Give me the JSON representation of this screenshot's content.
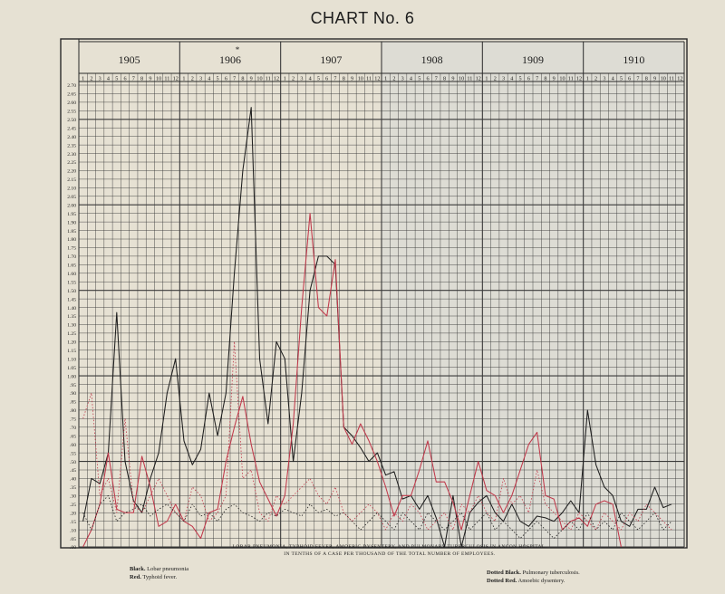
{
  "title": "CHART No. 6",
  "caption_line1": "LOBAR PNEUMONIA, TYPHOID FEVER, AMOEBIC DYSENTERY, AND PULMONARY TUBERCULOSIS IN ANCON HOSPITAL.",
  "caption_line2": "IN TENTHS OF A CASE PER THOUSAND OF THE TOTAL NUMBER OF EMPLOYEES.",
  "legend_left": [
    {
      "key": "Black.",
      "label": "Lobar pneumonia",
      "color": "#1e1e1e"
    },
    {
      "key": "Red.",
      "label": "Typhoid fever.",
      "color": "#c0384a"
    }
  ],
  "legend_right": [
    {
      "key": "Dotted Black.",
      "label": "Pulmonary tuberculosis.",
      "color": "#1e1e1e"
    },
    {
      "key": "Dotted Red.",
      "label": "Amoebic dysentery.",
      "color": "#c0384a"
    }
  ],
  "chart_data": {
    "type": "line",
    "years": [
      "1905",
      "1906",
      "1907",
      "1908",
      "1909",
      "1910"
    ],
    "year_marks": [
      "",
      "*",
      "",
      "",
      "",
      ""
    ],
    "months": [
      "1",
      "2",
      "3",
      "4",
      "5",
      "6",
      "7",
      "8",
      "9",
      "10",
      "11",
      "12"
    ],
    "y_ticks": [
      "2.70",
      "2.65",
      "2.60",
      "2.55",
      "2.50",
      "2.45",
      "2.40",
      "2.35",
      "2.30",
      "2.25",
      "2.20",
      "2.15",
      "2.10",
      "2.05",
      "2.00",
      "1.95",
      "1.90",
      "1.85",
      "1.80",
      "1.75",
      "1.70",
      "1.65",
      "1.60",
      "1.55",
      "1.50",
      "1.45",
      "1.40",
      "1.35",
      "1.30",
      "1.25",
      "1.20",
      "1.15",
      "1.10",
      "1.05",
      "1.00",
      ".95",
      ".90",
      ".85",
      ".80",
      ".75",
      ".70",
      ".65",
      ".60",
      ".55",
      ".50",
      ".45",
      ".40",
      ".35",
      ".30",
      ".25",
      ".20",
      ".15",
      ".10",
      ".05",
      ".00"
    ],
    "ylim": [
      0,
      2.7
    ],
    "grid": true,
    "series": [
      {
        "name": "Lobar pneumonia",
        "color": "#1e1e1e",
        "dash": "none",
        "values": [
          0.15,
          0.4,
          0.37,
          0.55,
          1.37,
          0.5,
          0.27,
          0.2,
          0.4,
          0.55,
          0.9,
          1.1,
          0.62,
          0.48,
          0.57,
          0.9,
          0.65,
          0.9,
          1.6,
          2.2,
          2.57,
          1.1,
          0.72,
          1.2,
          1.1,
          0.5,
          0.9,
          1.5,
          1.7,
          1.7,
          1.65,
          0.7,
          0.65,
          0.58,
          0.5,
          0.55,
          0.42,
          0.44,
          0.28,
          0.3,
          0.22,
          0.3,
          0.17,
          0.0,
          0.3,
          0.0,
          0.2,
          0.26,
          0.3,
          0.2,
          0.15,
          0.25,
          0.15,
          0.12,
          0.18,
          0.17,
          0.15,
          0.2,
          0.27,
          0.2,
          0.8,
          0.48,
          0.35,
          0.3,
          0.15,
          0.12,
          0.22,
          0.22,
          0.35,
          0.23,
          0.25
        ]
      },
      {
        "name": "Typhoid fever",
        "color": "#c0384a",
        "dash": "none",
        "values": [
          0.0,
          0.1,
          0.25,
          0.55,
          0.22,
          0.2,
          0.2,
          0.53,
          0.35,
          0.12,
          0.15,
          0.25,
          0.15,
          0.12,
          0.05,
          0.2,
          0.22,
          0.5,
          0.7,
          0.88,
          0.6,
          0.38,
          0.28,
          0.18,
          0.3,
          0.72,
          1.4,
          1.95,
          1.4,
          1.35,
          1.68,
          0.7,
          0.6,
          0.72,
          0.62,
          0.5,
          0.35,
          0.18,
          0.3,
          0.3,
          0.45,
          0.62,
          0.38,
          0.38,
          0.26,
          0.1,
          0.3,
          0.5,
          0.33,
          0.3,
          0.2,
          0.3,
          0.45,
          0.6,
          0.67,
          0.3,
          0.28,
          0.1,
          0.15,
          0.17,
          0.12,
          0.25,
          0.27,
          0.25,
          0.0
        ]
      },
      {
        "name": "Pulmonary tuberculosis",
        "color": "#1e1e1e",
        "dash": "1.5,2",
        "values": [
          0.2,
          0.1,
          0.25,
          0.3,
          0.15,
          0.2,
          0.22,
          0.25,
          0.18,
          0.22,
          0.25,
          0.2,
          0.15,
          0.25,
          0.18,
          0.2,
          0.15,
          0.22,
          0.25,
          0.2,
          0.18,
          0.15,
          0.2,
          0.18,
          0.22,
          0.2,
          0.18,
          0.25,
          0.2,
          0.22,
          0.18,
          0.2,
          0.15,
          0.1,
          0.15,
          0.2,
          0.15,
          0.1,
          0.2,
          0.15,
          0.1,
          0.2,
          0.15,
          0.1,
          0.15,
          0.2,
          0.1,
          0.15,
          0.2,
          0.1,
          0.15,
          0.1,
          0.05,
          0.1,
          0.15,
          0.1,
          0.05,
          0.1,
          0.15,
          0.1,
          0.2,
          0.1,
          0.15,
          0.1,
          0.2,
          0.15,
          0.1,
          0.15,
          0.2,
          0.1,
          0.15
        ]
      },
      {
        "name": "Amoebic dysentery",
        "color": "#c0384a",
        "dash": "1.5,2",
        "values": [
          0.75,
          0.9,
          0.3,
          0.4,
          0.2,
          0.75,
          0.25,
          0.2,
          0.3,
          0.4,
          0.3,
          0.2,
          0.15,
          0.35,
          0.3,
          0.15,
          0.2,
          0.3,
          1.2,
          0.4,
          0.45,
          0.2,
          0.15,
          0.3,
          0.25,
          0.3,
          0.35,
          0.4,
          0.3,
          0.25,
          0.35,
          0.2,
          0.15,
          0.2,
          0.25,
          0.2,
          0.1,
          0.2,
          0.15,
          0.25,
          0.2,
          0.1,
          0.15,
          0.2,
          0.1,
          0.25,
          0.2,
          0.3,
          0.2,
          0.15,
          0.4,
          0.25,
          0.3,
          0.2,
          0.45,
          0.25,
          0.2,
          0.15,
          0.1,
          0.2,
          0.15,
          0.1,
          0.2,
          0.15,
          0.1,
          0.2,
          0.15,
          0.25,
          0.2,
          0.15,
          0.1
        ]
      }
    ]
  }
}
